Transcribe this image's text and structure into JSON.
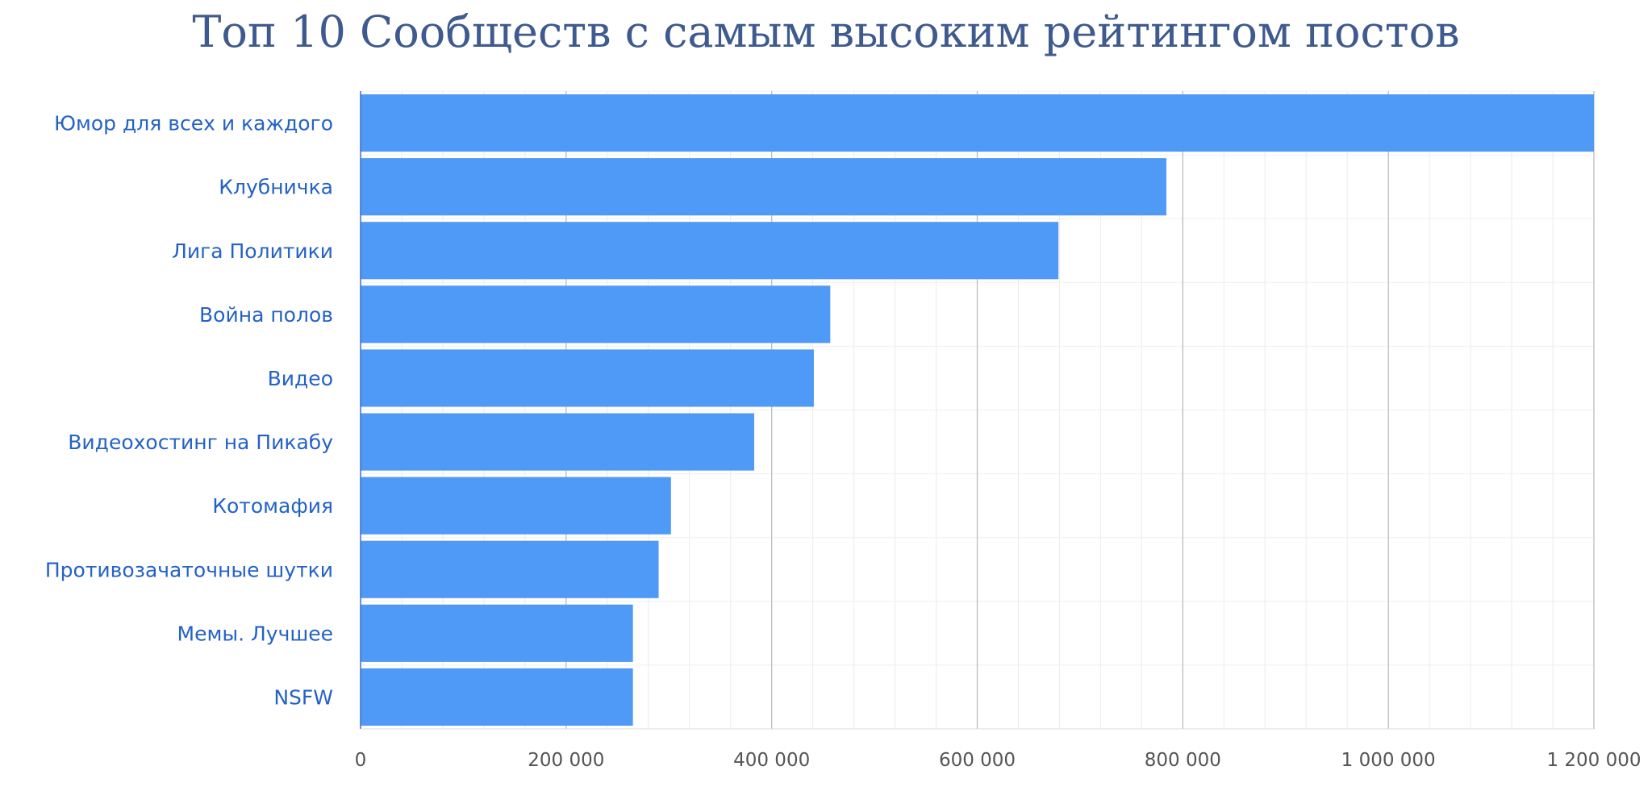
{
  "chart_data": {
    "type": "bar",
    "orientation": "horizontal",
    "title": "Топ 10 Сообществ с самым высоким рейтингом постов",
    "categories": [
      "Юмор для всех и каждого",
      "Клубничка",
      "Лига Политики",
      "Война полов",
      "Видео",
      "Видеохостинг на Пикабу",
      "Котомафия",
      "Противозачаточные шутки",
      "Мемы. Лучшее",
      "NSFW"
    ],
    "values": [
      1200000,
      784000,
      679000,
      457000,
      441000,
      383000,
      302000,
      290000,
      265000,
      265000
    ],
    "xlim": [
      0,
      1200000
    ],
    "xticks": [
      0,
      200000,
      400000,
      600000,
      800000,
      1000000,
      1200000
    ],
    "xtick_labels": [
      "0",
      "200 000",
      "400 000",
      "600 000",
      "800 000",
      "1 000 000",
      "1 200 000"
    ],
    "minor_grid_step": 40000,
    "grid": true,
    "colors": {
      "bar": "#4f99f7",
      "label": "#2462c6",
      "title": "#3e5a8e"
    }
  }
}
